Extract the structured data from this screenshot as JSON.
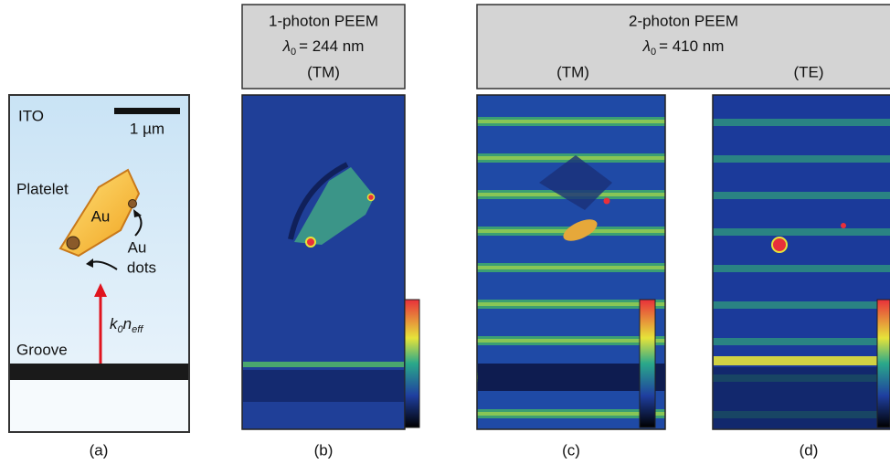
{
  "header_boxes": [
    {
      "title": "1-photon PEEM",
      "wavelength": {
        "symbol": "λ",
        "subscript": "0",
        "rest": "= 244 nm"
      },
      "modes": [
        "(TM)"
      ]
    },
    {
      "title": "2-photon PEEM",
      "wavelength": {
        "symbol": "λ",
        "subscript": "0",
        "rest": "= 410 nm"
      },
      "modes": [
        "(TM)",
        "(TE)"
      ]
    }
  ],
  "schematic": {
    "substrate": "ITO",
    "scale_bar": "1 µm",
    "platelet": "Platelet",
    "material": "Au",
    "dots": [
      "Au",
      "dots"
    ],
    "wavevector": {
      "k": "k",
      "k_sub": "0",
      "n": "n",
      "n_sub": "eff"
    },
    "groove": "Groove"
  },
  "panel_labels": [
    "(a)",
    "(b)",
    "(c)",
    "(d)"
  ]
}
